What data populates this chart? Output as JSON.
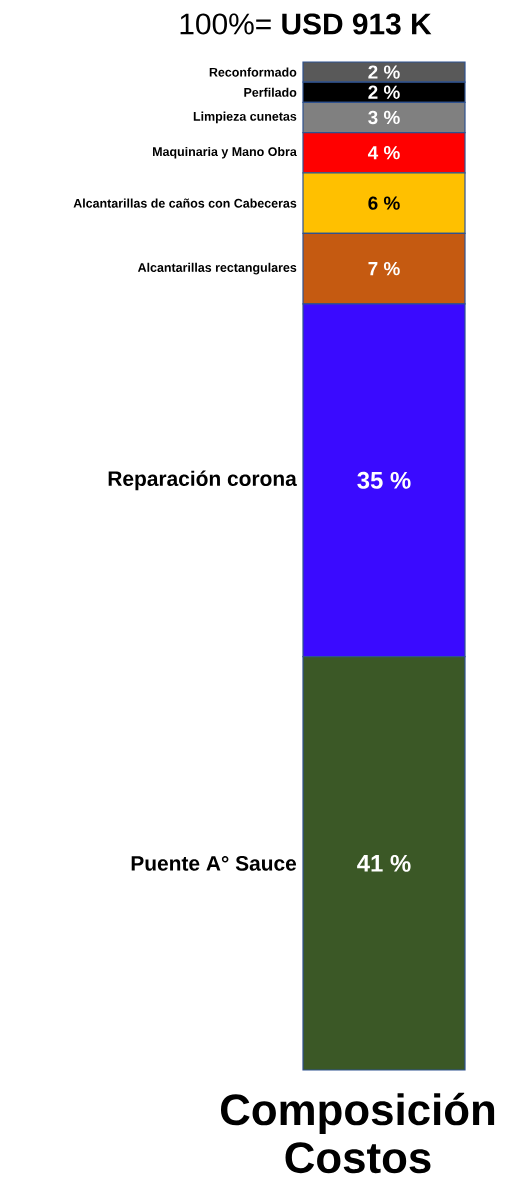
{
  "chart_data": {
    "type": "bar",
    "stacked": true,
    "title": "100%= **USD 913 K**",
    "xlabel": "Composición Costos",
    "categories": [
      null
    ],
    "series": [
      {
        "name": "Puente A° Sauce",
        "color": "#3b5826",
        "values": [
          41
        ],
        "value_labels": [
          "41 %"
        ]
      },
      {
        "name": "Reparación corona",
        "color": "#3a0aff",
        "values": [
          35
        ],
        "value_labels": [
          "35 %"
        ]
      },
      {
        "name": "Alcantarillas rectangulares",
        "color": "#c55a11",
        "values": [
          7
        ],
        "value_labels": [
          "7 %"
        ]
      },
      {
        "name": "Alcantarillas de caños  con Cabeceras",
        "color": "#ffc000",
        "values": [
          6
        ],
        "value_labels": [
          "6 %"
        ]
      },
      {
        "name": "Maquinaria y Mano Obra",
        "color": "#ff0000",
        "values": [
          4
        ],
        "value_labels": [
          "4 %"
        ]
      },
      {
        "name": "Limpieza cunetas",
        "color": "#808080",
        "values": [
          3
        ],
        "value_labels": [
          "3 %"
        ]
      },
      {
        "name": "Perfilado",
        "color": "#000000",
        "values": [
          2
        ],
        "value_labels": [
          "2 %"
        ]
      },
      {
        "name": "Reconformado",
        "color": "#595959",
        "values": [
          2
        ],
        "value_labels": [
          "2 %"
        ]
      }
    ]
  }
}
